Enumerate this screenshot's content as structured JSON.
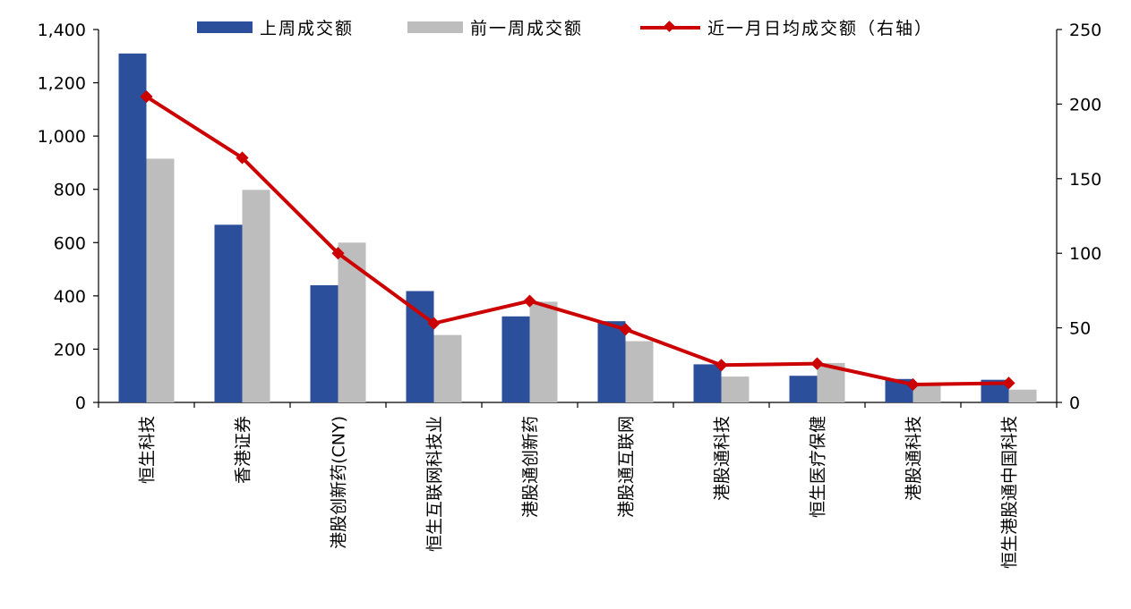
{
  "chart_data": {
    "type": "bar",
    "categories": [
      "恒生科技",
      "香港证券",
      "港股创新药(CNY)",
      "恒生互联网科技业",
      "港股通创新药",
      "港股通互联网",
      "港股通科技",
      "恒生医疗保健",
      "港股通科技",
      "恒生港股通中国科技"
    ],
    "series": [
      {
        "name": "上周成交额",
        "type": "bar",
        "axis": "left",
        "values": [
          1310,
          667,
          440,
          418,
          323,
          305,
          143,
          100,
          88,
          85
        ]
      },
      {
        "name": "前一周成交额",
        "type": "bar",
        "axis": "left",
        "values": [
          915,
          798,
          600,
          253,
          378,
          230,
          97,
          148,
          72,
          48
        ]
      },
      {
        "name": "近一月日均成交额（右轴）",
        "type": "line",
        "axis": "right",
        "values": [
          205,
          164,
          100,
          53,
          68,
          49,
          25,
          26,
          12,
          13
        ]
      }
    ],
    "yleft": {
      "min": 0,
      "max": 1400,
      "ticks": [
        "0",
        "200",
        "400",
        "600",
        "800",
        "1,000",
        "1,200",
        "1,400"
      ]
    },
    "yright": {
      "min": 0,
      "max": 250,
      "ticks": [
        "0",
        "50",
        "100",
        "150",
        "200",
        "250"
      ]
    },
    "colors": {
      "bar_last_week": "#2b4f9b",
      "bar_prev_week": "#bdbdbd",
      "line": "#cc0000",
      "axis": "#000000"
    },
    "legend_position": "top",
    "grid": false
  }
}
